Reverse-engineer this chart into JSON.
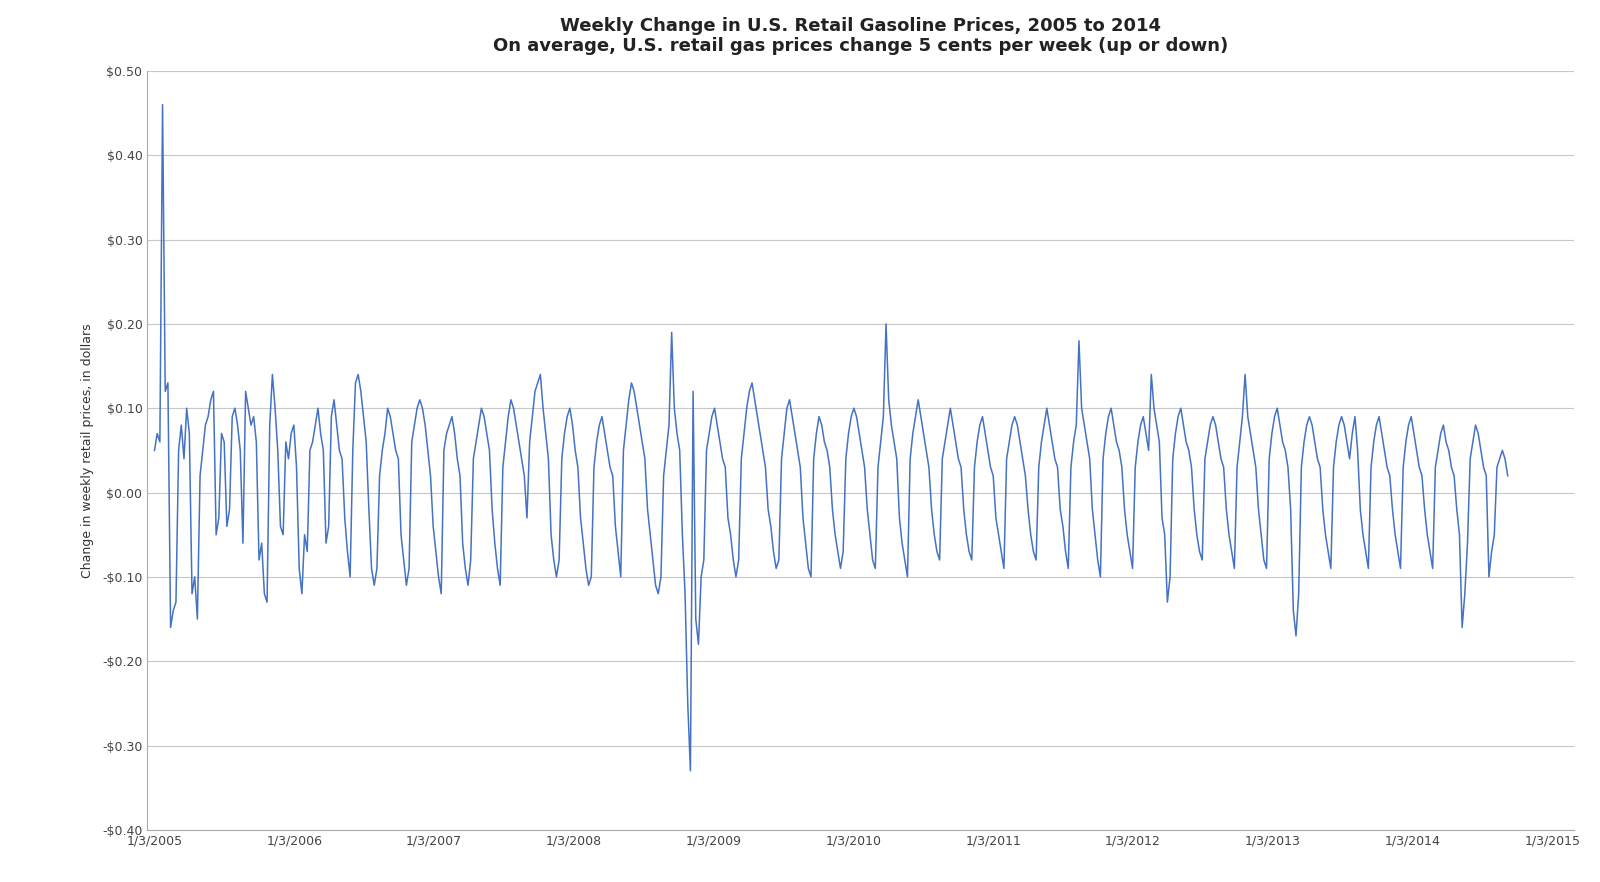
{
  "title_line1": "Weekly Change in U.S. Retail Gasoline Prices, 2005 to 2014",
  "title_line2": "On average, U.S. retail gas prices change 5 cents per week (up or down)",
  "ylabel": "Change in weekly retail prices, in dollars",
  "line_color": "#4472C4",
  "background_color": "#FFFFFF",
  "fig_background": "#FFFFFF",
  "ylim": [
    -0.4,
    0.5
  ],
  "yticks": [
    -0.4,
    -0.3,
    -0.2,
    -0.1,
    0.0,
    0.1,
    0.2,
    0.3,
    0.4,
    0.5
  ],
  "ytick_labels": [
    "-$0.40",
    "-$0.30",
    "-$0.20",
    "-$0.10",
    "$0.00",
    "$0.10",
    "$0.20",
    "$0.30",
    "$0.40",
    "$0.50"
  ],
  "grid_color": "#C8C8C8",
  "tick_label_dates": [
    "1/3/2005",
    "1/3/2006",
    "1/3/2007",
    "1/3/2008",
    "1/3/2009",
    "1/3/2010",
    "1/3/2011",
    "1/3/2012",
    "1/3/2013",
    "1/3/2014",
    "1/3/2015"
  ],
  "line_width": 1.1,
  "title_fontsize": 13,
  "axis_fontsize": 9,
  "ylabel_fontsize": 9,
  "weekly_changes": [
    0.05,
    0.07,
    0.06,
    0.46,
    0.12,
    0.13,
    -0.16,
    -0.14,
    -0.13,
    0.05,
    0.08,
    0.04,
    0.1,
    0.07,
    -0.12,
    -0.1,
    -0.15,
    0.02,
    0.05,
    0.08,
    0.09,
    0.11,
    0.12,
    -0.05,
    -0.03,
    0.07,
    0.06,
    -0.04,
    -0.02,
    0.09,
    0.1,
    0.08,
    0.05,
    -0.06,
    0.12,
    0.1,
    0.08,
    0.09,
    0.06,
    -0.08,
    -0.06,
    -0.12,
    -0.13,
    0.08,
    0.14,
    0.1,
    0.05,
    -0.04,
    -0.05,
    0.06,
    0.04,
    0.07,
    0.08,
    0.03,
    -0.09,
    -0.12,
    -0.05,
    -0.07,
    0.05,
    0.06,
    0.08,
    0.1,
    0.07,
    0.05,
    -0.06,
    -0.04,
    0.09,
    0.11,
    0.08,
    0.05,
    0.04,
    -0.03,
    -0.07,
    -0.1,
    0.05,
    0.13,
    0.14,
    0.12,
    0.09,
    0.06,
    -0.02,
    -0.09,
    -0.11,
    -0.09,
    0.02,
    0.05,
    0.07,
    0.1,
    0.09,
    0.07,
    0.05,
    0.04,
    -0.05,
    -0.08,
    -0.11,
    -0.09,
    0.06,
    0.08,
    0.1,
    0.11,
    0.1,
    0.08,
    0.05,
    0.02,
    -0.04,
    -0.07,
    -0.1,
    -0.12,
    0.05,
    0.07,
    0.08,
    0.09,
    0.07,
    0.04,
    0.02,
    -0.06,
    -0.09,
    -0.11,
    -0.08,
    0.04,
    0.06,
    0.08,
    0.1,
    0.09,
    0.07,
    0.05,
    -0.02,
    -0.06,
    -0.09,
    -0.11,
    0.03,
    0.06,
    0.09,
    0.11,
    0.1,
    0.08,
    0.06,
    0.04,
    0.02,
    -0.03,
    0.06,
    0.09,
    0.12,
    0.13,
    0.14,
    0.1,
    0.07,
    0.04,
    -0.05,
    -0.08,
    -0.1,
    -0.08,
    0.04,
    0.07,
    0.09,
    0.1,
    0.08,
    0.05,
    0.03,
    -0.03,
    -0.06,
    -0.09,
    -0.11,
    -0.1,
    0.03,
    0.06,
    0.08,
    0.09,
    0.07,
    0.05,
    0.03,
    0.02,
    -0.04,
    -0.07,
    -0.1,
    0.05,
    0.08,
    0.11,
    0.13,
    0.12,
    0.1,
    0.08,
    0.06,
    0.04,
    -0.02,
    -0.05,
    -0.08,
    -0.11,
    -0.12,
    -0.1,
    0.02,
    0.05,
    0.08,
    0.19,
    0.1,
    0.07,
    0.05,
    -0.05,
    -0.12,
    -0.25,
    -0.33,
    0.12,
    -0.15,
    -0.18,
    -0.1,
    -0.08,
    0.05,
    0.07,
    0.09,
    0.1,
    0.08,
    0.06,
    0.04,
    0.03,
    -0.03,
    -0.05,
    -0.08,
    -0.1,
    -0.08,
    0.04,
    0.07,
    0.1,
    0.12,
    0.13,
    0.11,
    0.09,
    0.07,
    0.05,
    0.03,
    -0.02,
    -0.04,
    -0.07,
    -0.09,
    -0.08,
    0.04,
    0.07,
    0.1,
    0.11,
    0.09,
    0.07,
    0.05,
    0.03,
    -0.03,
    -0.06,
    -0.09,
    -0.1,
    0.04,
    0.07,
    0.09,
    0.08,
    0.06,
    0.05,
    0.03,
    -0.02,
    -0.05,
    -0.07,
    -0.09,
    -0.07,
    0.04,
    0.07,
    0.09,
    0.1,
    0.09,
    0.07,
    0.05,
    0.03,
    -0.02,
    -0.05,
    -0.08,
    -0.09,
    0.03,
    0.06,
    0.09,
    0.2,
    0.11,
    0.08,
    0.06,
    0.04,
    -0.03,
    -0.06,
    -0.08,
    -0.1,
    0.04,
    0.07,
    0.09,
    0.11,
    0.09,
    0.07,
    0.05,
    0.03,
    -0.02,
    -0.05,
    -0.07,
    -0.08,
    0.04,
    0.06,
    0.08,
    0.1,
    0.08,
    0.06,
    0.04,
    0.03,
    -0.02,
    -0.05,
    -0.07,
    -0.08,
    0.03,
    0.06,
    0.08,
    0.09,
    0.07,
    0.05,
    0.03,
    0.02,
    -0.03,
    -0.05,
    -0.07,
    -0.09,
    0.04,
    0.06,
    0.08,
    0.09,
    0.08,
    0.06,
    0.04,
    0.02,
    -0.02,
    -0.05,
    -0.07,
    -0.08,
    0.03,
    0.06,
    0.08,
    0.1,
    0.08,
    0.06,
    0.04,
    0.03,
    -0.02,
    -0.04,
    -0.07,
    -0.09,
    0.03,
    0.06,
    0.08,
    0.18,
    0.1,
    0.08,
    0.06,
    0.04,
    -0.02,
    -0.05,
    -0.08,
    -0.1,
    0.04,
    0.07,
    0.09,
    0.1,
    0.08,
    0.06,
    0.05,
    0.03,
    -0.02,
    -0.05,
    -0.07,
    -0.09,
    0.03,
    0.06,
    0.08,
    0.09,
    0.07,
    0.05,
    0.14,
    0.1,
    0.08,
    0.06,
    -0.03,
    -0.05,
    -0.13,
    -0.1,
    0.04,
    0.07,
    0.09,
    0.1,
    0.08,
    0.06,
    0.05,
    0.03,
    -0.02,
    -0.05,
    -0.07,
    -0.08,
    0.04,
    0.06,
    0.08,
    0.09,
    0.08,
    0.06,
    0.04,
    0.03,
    -0.02,
    -0.05,
    -0.07,
    -0.09,
    0.03,
    0.06,
    0.09,
    0.14,
    0.09,
    0.07,
    0.05,
    0.03,
    -0.02,
    -0.05,
    -0.08,
    -0.09,
    0.04,
    0.07,
    0.09,
    0.1,
    0.08,
    0.06,
    0.05,
    0.03,
    -0.02,
    -0.14,
    -0.17,
    -0.12,
    0.03,
    0.06,
    0.08,
    0.09,
    0.08,
    0.06,
    0.04,
    0.03,
    -0.02,
    -0.05,
    -0.07,
    -0.09,
    0.03,
    0.06,
    0.08,
    0.09,
    0.08,
    0.06,
    0.04,
    0.07,
    0.09,
    0.05,
    -0.02,
    -0.05,
    -0.07,
    -0.09,
    0.03,
    0.06,
    0.08,
    0.09,
    0.07,
    0.05,
    0.03,
    0.02,
    -0.02,
    -0.05,
    -0.07,
    -0.09,
    0.03,
    0.06,
    0.08,
    0.09,
    0.07,
    0.05,
    0.03,
    0.02,
    -0.02,
    -0.05,
    -0.07,
    -0.09,
    0.03,
    0.05,
    0.07,
    0.08,
    0.06,
    0.05,
    0.03,
    0.02,
    -0.02,
    -0.05,
    -0.16,
    -0.12,
    -0.06,
    0.04,
    0.06,
    0.08,
    0.07,
    0.05,
    0.03,
    0.02,
    -0.1,
    -0.07,
    -0.05,
    0.03,
    0.04,
    0.05,
    0.04,
    0.02
  ]
}
